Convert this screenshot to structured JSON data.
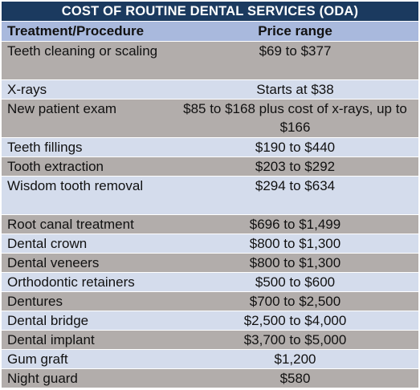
{
  "table": {
    "title": "COST OF ROUTINE DENTAL SERVICES (ODA)",
    "headers": [
      "Treatment/Procedure",
      "Price range"
    ],
    "rows": [
      {
        "procedure": "Teeth cleaning or scaling",
        "price": "$69 to $377"
      },
      {
        "procedure": "X-rays",
        "price": "Starts at $38"
      },
      {
        "procedure": "New patient exam",
        "price": "$85 to $168 plus cost of x-rays, up to $166"
      },
      {
        "procedure": "Teeth fillings",
        "price": "$190 to $440"
      },
      {
        "procedure": "Tooth extraction",
        "price": "$203 to $292"
      },
      {
        "procedure": "Wisdom tooth removal",
        "price": "$294 to $634"
      },
      {
        "procedure": "Root canal treatment",
        "price": "$696 to $1,499"
      },
      {
        "procedure": "Dental crown",
        "price": "$800 to $1,300"
      },
      {
        "procedure": "Dental veneers",
        "price": "$800 to $1,300"
      },
      {
        "procedure": "Orthodontic retainers",
        "price": "$500 to $600"
      },
      {
        "procedure": "Dentures",
        "price": "$700 to $2,500"
      },
      {
        "procedure": "Dental bridge",
        "price": "$2,500 to $4,000"
      },
      {
        "procedure": "Dental implant",
        "price": "$3,700 to $5,000"
      },
      {
        "procedure": "Gum graft",
        "price": "$1,200"
      },
      {
        "procedure": "Night guard",
        "price": "$580"
      }
    ]
  },
  "colors": {
    "title_bg": "#1b3a5f",
    "header_bg": "#a9b9dd",
    "row_gray": "#b2adab",
    "row_blue": "#d4dcec"
  }
}
